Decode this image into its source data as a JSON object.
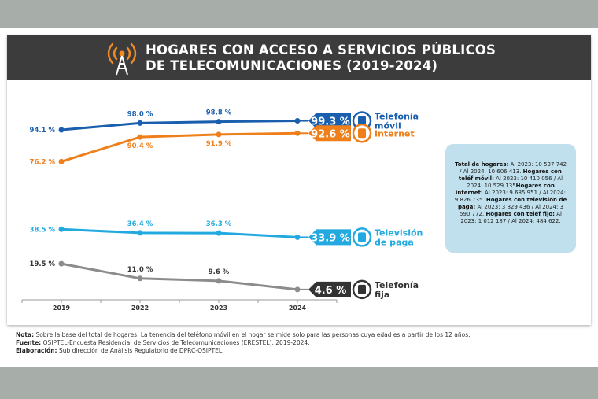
{
  "header": {
    "title_line1": "HOGARES CON ACCESO A SERVICIOS PÚBLICOS",
    "title_line2": "DE TELECOMUNICACIONES (2019-2024)",
    "icon": "antenna-icon",
    "accent": "#f08a24",
    "background": "#3c3c3c"
  },
  "chart_data": {
    "type": "line",
    "categories": [
      "2019",
      "2022",
      "2023",
      "2024"
    ],
    "series": [
      {
        "name": "Telefonía móvil",
        "values": [
          94.1,
          98.0,
          98.8,
          99.3
        ],
        "labels": [
          "94.1 %",
          "98.0 %",
          "98.8 %",
          "99.3 %"
        ],
        "color": "#1a5fae",
        "icon": "mobile-phone-icon"
      },
      {
        "name": "Internet",
        "values": [
          76.2,
          90.4,
          91.9,
          92.6
        ],
        "labels": [
          "76.2 %",
          "90.4 %",
          "91.9 %",
          "92.6 %"
        ],
        "color": "#ee7f1b",
        "icon": "wifi-antenna-icon"
      },
      {
        "name": "Televisión de paga",
        "values": [
          38.5,
          36.4,
          36.3,
          33.9
        ],
        "labels": [
          "38.5 %",
          "36.4 %",
          "36.3 %",
          "33.9 %"
        ],
        "color": "#22a9df",
        "icon": "tv-icon"
      },
      {
        "name": "Telefonía fija",
        "values": [
          19.5,
          11.0,
          9.6,
          4.6
        ],
        "labels": [
          "19.5 %",
          "11.0 %",
          "9.6 %",
          "4.6 %"
        ],
        "color": "#8c8c8c",
        "icon": "landline-phone-icon"
      }
    ],
    "legend_lines": [
      [
        "Telefonía",
        "móvil"
      ],
      [
        "Internet"
      ],
      [
        "Televisión",
        "de paga"
      ],
      [
        "Telefonía",
        "fija"
      ]
    ],
    "grid": false,
    "axis_break": true
  },
  "infobox": {
    "parts": [
      {
        "b": "Total de hogares:",
        "t": " Al 2023: 10 537 742 / Al 2024: 10 606 413. "
      },
      {
        "b": "Hogares con teléf  móvil:",
        "t": " Al 2023: 10 410 056 / Al 2024: 10 529 135"
      },
      {
        "b": "Hogares con internet:",
        "t": " Al 2023: 9 685 951 / Al 2024: 9 826 735. "
      },
      {
        "b": "Hogares con televisión de paga:",
        "t": " Al 2023: 3 829 436 / Al 2024: 3 590 772. "
      },
      {
        "b": "Hogares con teléf  fijo:",
        "t": " Al 2023: 1 012 187 / Al 2024: 484 622."
      }
    ]
  },
  "notes": [
    {
      "b": "Nota:",
      "t": " Sobre la base del total de hogares. La tenencia del teléfono móvil en el hogar se mide solo para las personas cuya edad es a partir de los 12 años."
    },
    {
      "b": "Fuente:",
      "t": " OSIPTEL-Encuesta Residencial de Servicios de Telecomunicaciones (ERESTEL), 2019-2024."
    },
    {
      "b": "Elaboración:",
      "t": " Sub dirección de Análisis Regulatorio de DPRC-OSIPTEL."
    }
  ]
}
